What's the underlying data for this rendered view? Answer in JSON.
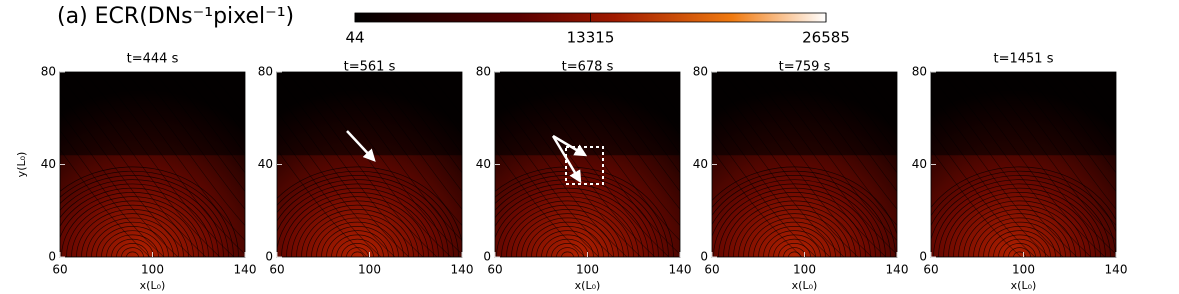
{
  "chart_data": {
    "type": "image-panels",
    "title": "(a) ECR(DNs⁻¹pixel⁻¹)",
    "colorbar": {
      "clim": [
        44,
        26585
      ],
      "ticks": [
        44,
        13315,
        26585
      ]
    },
    "xlim": [
      60,
      140
    ],
    "xticks": [
      60,
      100,
      140
    ],
    "ylim": [
      0,
      80
    ],
    "yticks": [
      0,
      40,
      80
    ],
    "panels": [
      {
        "title": "t=444 s",
        "xlabel": "x(L₀)",
        "ylabel": "y(L₀)"
      },
      {
        "title": "t=561 s"
      },
      {
        "title": "t=678 s",
        "xlabel": "x(L₀)"
      },
      {
        "title": "t=759 s",
        "xlabel": "x(L₀)"
      },
      {
        "title": "t=1451 s",
        "xlabel": "x(L₀)"
      }
    ]
  }
}
